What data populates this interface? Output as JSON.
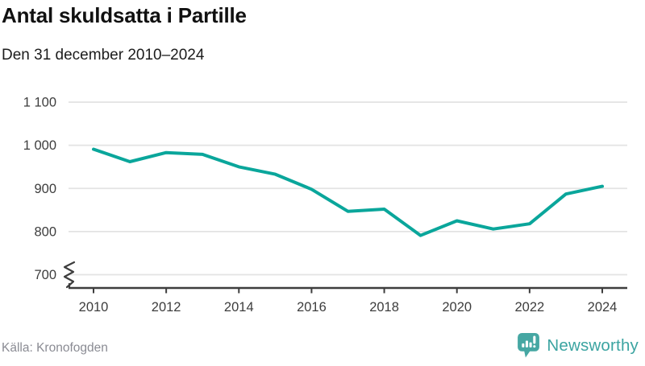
{
  "header": {
    "title": "Antal skuldsatta i Partille",
    "subtitle": "Den 31 december 2010–2024"
  },
  "footer": {
    "source": "Källa: Kronofogden",
    "brand": "Newsworthy"
  },
  "colors": {
    "line": "#0aa69b",
    "grid": "#e3e3e3",
    "axis": "#3d3d3d",
    "tick_label": "#3d3d3d",
    "brand_teal": "#46a7a3",
    "source_text": "#8a8b93"
  },
  "chart_data": {
    "type": "line",
    "title": "Antal skuldsatta i Partille",
    "subtitle": "Den 31 december 2010–2024",
    "x": [
      2010,
      2011,
      2012,
      2013,
      2014,
      2015,
      2016,
      2017,
      2018,
      2019,
      2020,
      2021,
      2022,
      2023,
      2024
    ],
    "series": [
      {
        "name": "Antal skuldsatta",
        "values": [
          991,
          962,
          983,
          979,
          950,
          933,
          898,
          847,
          852,
          791,
          825,
          806,
          818,
          887,
          905
        ]
      }
    ],
    "xlabel": "",
    "ylabel": "",
    "ylim": [
      700,
      1100
    ],
    "yticks": [
      700,
      800,
      900,
      1000,
      1100
    ],
    "ytick_labels": [
      "700",
      "800",
      "900",
      "1 000",
      "1 100"
    ],
    "xticks": [
      2010,
      2012,
      2014,
      2016,
      2018,
      2020,
      2022,
      2024
    ],
    "grid": "horizontal",
    "legend": false,
    "axis_break_at_bottom": true
  }
}
